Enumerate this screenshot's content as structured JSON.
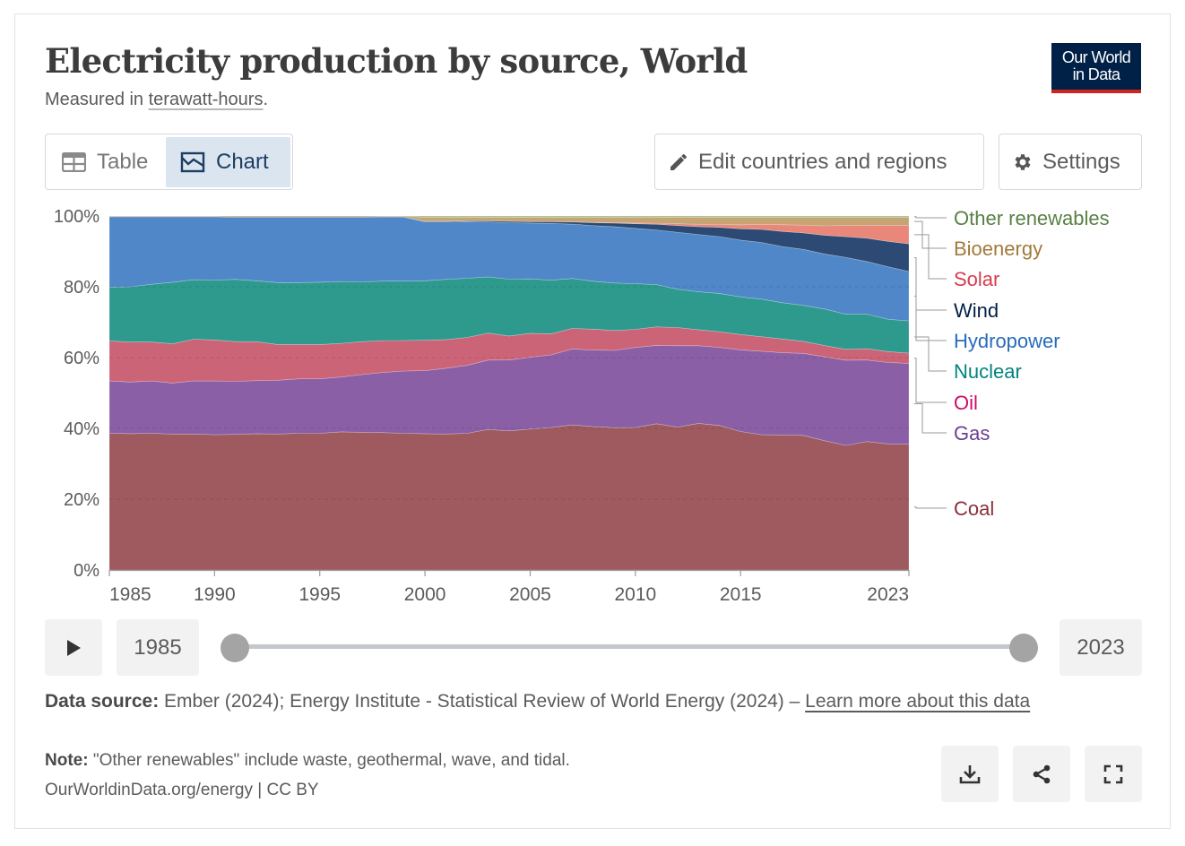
{
  "header": {
    "title": "Electricity production by source, World",
    "subtitle_prefix": "Measured in ",
    "subtitle_link": "terawatt-hours",
    "subtitle_suffix": ".",
    "logo_line1": "Our World",
    "logo_line2": "in Data"
  },
  "tabs": [
    {
      "label": "Table",
      "icon": "table-icon",
      "active": false
    },
    {
      "label": "Chart",
      "icon": "chart-icon",
      "active": true
    }
  ],
  "toolbar": {
    "edit_label": "Edit countries and regions",
    "edit_icon": "pencil-icon",
    "settings_label": "Settings",
    "settings_icon": "gear-icon"
  },
  "timeline": {
    "start_year": "1985",
    "end_year": "2023"
  },
  "footer": {
    "source_label": "Data source:",
    "source_text": " Ember (2024); Energy Institute - Statistical Review of World Energy (2024) – ",
    "source_link": "Learn more about this data",
    "note_label": "Note:",
    "note_text": " \"Other renewables\" include waste, geothermal, wave, and tidal.",
    "credit": "OurWorldinData.org/energy | CC BY"
  },
  "chart_data": {
    "type": "area",
    "stacked": "percent",
    "xlim": [
      1985,
      2023
    ],
    "ylim": [
      0,
      100
    ],
    "x_ticks": [
      1985,
      1990,
      1995,
      2000,
      2005,
      2010,
      2015,
      2023
    ],
    "y_ticks": [
      "0%",
      "20%",
      "40%",
      "60%",
      "80%",
      "100%"
    ],
    "grid": "horizontal dashed",
    "legend": "right",
    "x": [
      1985,
      1986,
      1987,
      1988,
      1989,
      1990,
      1991,
      1992,
      1993,
      1994,
      1995,
      1996,
      1997,
      1998,
      1999,
      2000,
      2001,
      2002,
      2003,
      2004,
      2005,
      2006,
      2007,
      2008,
      2009,
      2010,
      2011,
      2012,
      2013,
      2014,
      2015,
      2016,
      2017,
      2018,
      2019,
      2020,
      2021,
      2022,
      2023
    ],
    "series": [
      {
        "name": "Coal",
        "color": "#9e5a5e",
        "label_color": "#883039",
        "values": [
          38.6,
          38.5,
          38.6,
          38.4,
          38.4,
          38.2,
          38.3,
          38.5,
          38.4,
          38.6,
          38.6,
          39.0,
          38.9,
          38.8,
          38.6,
          38.5,
          38.4,
          38.6,
          39.7,
          39.4,
          39.9,
          40.4,
          40.9,
          40.4,
          40.1,
          40.2,
          40.9,
          40.2,
          41.0,
          40.7,
          39.0,
          38.2,
          38.3,
          38.2,
          36.7,
          35.5,
          36.4,
          35.8,
          35.6
        ]
      },
      {
        "name": "Gas",
        "color": "#8a5fa6",
        "label_color": "#6d3e91",
        "values": [
          14.8,
          14.6,
          14.8,
          14.4,
          15.0,
          15.2,
          15.0,
          15.0,
          15.2,
          15.4,
          15.4,
          15.5,
          16.3,
          17.0,
          17.6,
          17.8,
          18.6,
          19.2,
          19.6,
          20.1,
          20.3,
          20.6,
          21.4,
          21.6,
          21.8,
          22.6,
          21.9,
          22.9,
          21.7,
          22.0,
          23.0,
          23.6,
          23.3,
          23.3,
          23.8,
          24.3,
          23.1,
          23.1,
          22.9
        ]
      },
      {
        "name": "Oil",
        "color": "#cc6478",
        "label_color": "#cf0a66",
        "values": [
          11.3,
          11.3,
          11.0,
          11.1,
          11.8,
          11.6,
          11.2,
          11.0,
          10.1,
          9.7,
          9.7,
          9.5,
          9.3,
          9.0,
          8.6,
          8.6,
          8.1,
          7.9,
          7.6,
          6.8,
          6.8,
          6.0,
          5.8,
          5.9,
          5.6,
          5.1,
          5.2,
          5.1,
          4.5,
          4.4,
          4.3,
          4.1,
          3.9,
          3.4,
          3.2,
          3.1,
          3.2,
          3.1,
          2.9
        ]
      },
      {
        "name": "Nuclear",
        "color": "#2e9a8e",
        "label_color": "#00847e",
        "values": [
          15.2,
          15.6,
          16.3,
          17.4,
          16.8,
          16.9,
          17.6,
          17.2,
          17.5,
          17.5,
          17.6,
          17.5,
          16.9,
          16.8,
          16.8,
          16.8,
          17.0,
          16.7,
          15.9,
          16.1,
          15.4,
          15.2,
          14.1,
          13.5,
          13.4,
          12.9,
          11.8,
          10.8,
          10.6,
          10.8,
          10.6,
          10.6,
          10.3,
          10.2,
          10.4,
          10.0,
          9.8,
          9.2,
          9.1
        ]
      },
      {
        "name": "Hydropower",
        "color": "#5087c8",
        "label_color": "#286bbb",
        "values": [
          19.9,
          19.8,
          19.1,
          18.5,
          17.8,
          17.9,
          17.6,
          18.0,
          18.5,
          18.5,
          18.4,
          18.2,
          18.3,
          18.1,
          18.1,
          16.6,
          16.2,
          16.0,
          15.5,
          16.0,
          15.8,
          16.1,
          15.3,
          15.7,
          15.9,
          15.6,
          15.3,
          16.0,
          16.0,
          16.0,
          16.0,
          16.0,
          15.9,
          15.9,
          15.6,
          16.2,
          14.9,
          14.9,
          14.0
        ]
      },
      {
        "name": "Wind",
        "color": "#2c4a73",
        "label_color": "#002147",
        "values": [
          0,
          0,
          0,
          0,
          0,
          0,
          0,
          0,
          0,
          0,
          0,
          0,
          0,
          0.1,
          0.1,
          0.2,
          0.2,
          0.2,
          0.3,
          0.4,
          0.4,
          0.5,
          0.6,
          0.8,
          1.0,
          1.3,
          1.6,
          1.9,
          2.2,
          2.6,
          3.2,
          3.7,
          4.3,
          4.7,
          5.3,
          5.9,
          6.6,
          7.2,
          7.8
        ]
      },
      {
        "name": "Solar",
        "color": "#e8877a",
        "label_color": "#d73c50",
        "values": [
          0,
          0,
          0,
          0,
          0,
          0,
          0,
          0,
          0,
          0,
          0,
          0,
          0,
          0,
          0,
          0,
          0,
          0,
          0,
          0,
          0,
          0,
          0,
          0.1,
          0.1,
          0.2,
          0.3,
          0.5,
          0.7,
          0.8,
          1.1,
          1.4,
          1.9,
          2.2,
          2.7,
          3.2,
          3.6,
          4.5,
          5.2
        ]
      },
      {
        "name": "Bioenergy",
        "color": "#c6a475",
        "label_color": "#a2793a",
        "values": [
          0.2,
          0.2,
          0.2,
          0.2,
          0.2,
          0.2,
          0.3,
          0.3,
          0.3,
          0.3,
          0.3,
          0.3,
          0.3,
          0.2,
          0.2,
          1.1,
          1.1,
          1.0,
          1.0,
          1.1,
          1.2,
          1.2,
          1.3,
          1.4,
          1.5,
          1.6,
          1.6,
          1.8,
          1.9,
          2.0,
          2.1,
          2.0,
          2.1,
          2.2,
          2.4,
          2.3,
          2.3,
          2.3,
          2.3
        ]
      },
      {
        "name": "Other renewables",
        "color": "#a9bf84",
        "label_color": "#578145",
        "values": [
          0,
          0,
          0,
          0,
          0,
          0,
          0,
          0,
          0,
          0,
          0,
          0,
          0,
          0,
          0,
          0.4,
          0.4,
          0.4,
          0.4,
          0.4,
          0.4,
          0.4,
          0.4,
          0.4,
          0.4,
          0.4,
          0.4,
          0.4,
          0.4,
          0.4,
          0.4,
          0.4,
          0.4,
          0.4,
          0.4,
          0.4,
          0.4,
          0.4,
          0.4
        ]
      }
    ]
  }
}
